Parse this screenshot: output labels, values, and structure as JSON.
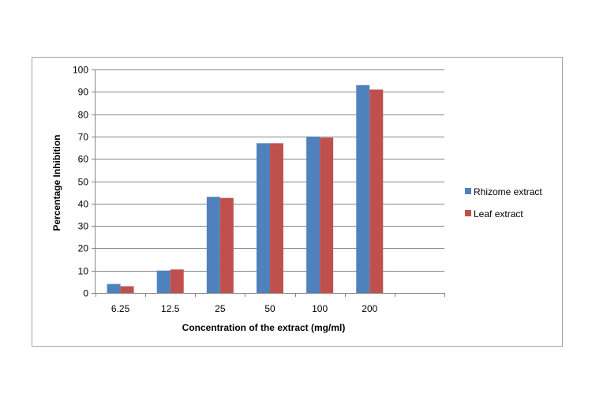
{
  "chart_data": {
    "type": "bar",
    "title": "",
    "xlabel": "Concentration of the extract (mg/ml)",
    "ylabel": "Percentage Inhibition",
    "categories": [
      "6.25",
      "12.5",
      "25",
      "50",
      "100",
      "200"
    ],
    "series": [
      {
        "name": "Rhizome extract",
        "color": "#4f81bd",
        "values": [
          4,
          10,
          43,
          67,
          70,
          93
        ]
      },
      {
        "name": "Leaf extract",
        "color": "#c0504d",
        "values": [
          3,
          10.5,
          42.5,
          67,
          69.5,
          91
        ]
      }
    ],
    "ylim": [
      0,
      100
    ],
    "yticks": [
      "0",
      "10",
      "20",
      "30",
      "40",
      "50",
      "60",
      "70",
      "80",
      "90",
      "100"
    ],
    "grid": true,
    "legend_position": "right"
  }
}
